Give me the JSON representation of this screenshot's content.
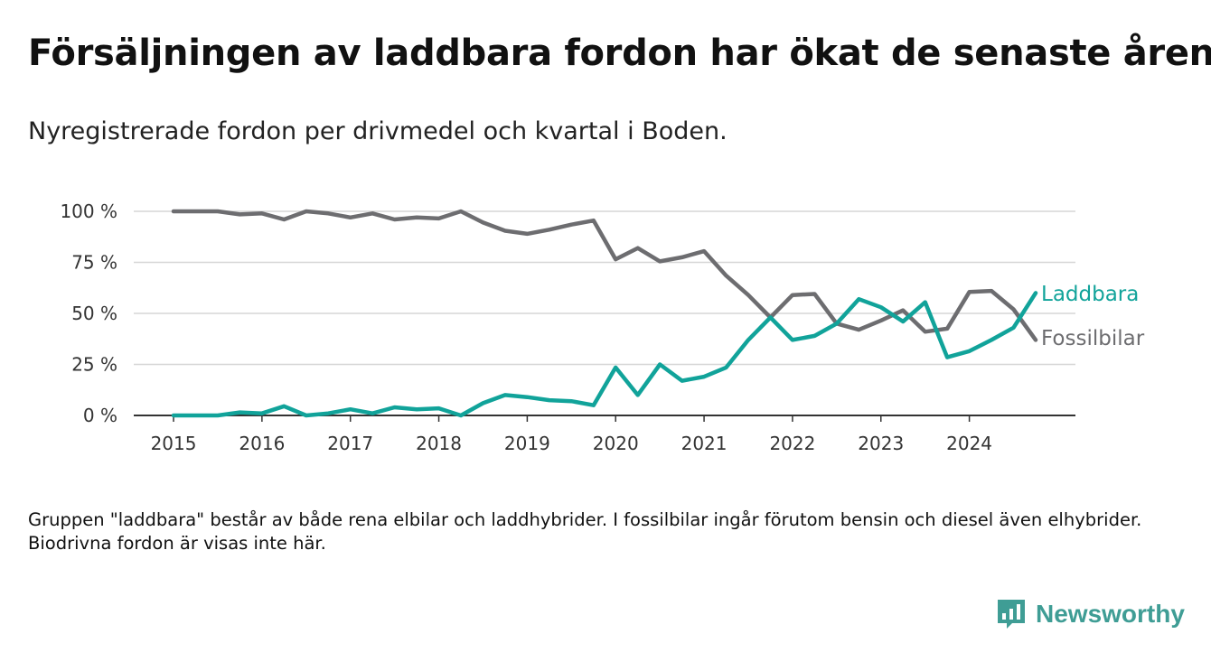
{
  "header": {
    "title": "Försäljningen av laddbara fordon har ökat de senaste åren",
    "subtitle": "Nyregistrerade fordon per drivmedel och kvartal i Boden."
  },
  "footer": {
    "note": "Gruppen \"laddbara\" består av både rena elbilar och laddhybrider. I fossilbilar ingår förutom bensin och diesel även elhybrider. Biodrivna fordon är visas inte här.",
    "logo_text": "Newsworthy"
  },
  "colors": {
    "laddbara": "#11a39a",
    "fossil": "#6d6d70",
    "grid": "#d6d6d6",
    "axis": "#333333",
    "brand": "#3f9d95"
  },
  "chart_data": {
    "type": "line",
    "x": [
      2015.0,
      2015.25,
      2015.5,
      2015.75,
      2016.0,
      2016.25,
      2016.5,
      2016.75,
      2017.0,
      2017.25,
      2017.5,
      2017.75,
      2018.0,
      2018.25,
      2018.5,
      2018.75,
      2019.0,
      2019.25,
      2019.5,
      2019.75,
      2020.0,
      2020.25,
      2020.5,
      2020.75,
      2021.0,
      2021.25,
      2021.5,
      2021.75,
      2022.0,
      2022.25,
      2022.5,
      2022.75,
      2023.0,
      2023.25,
      2023.5,
      2023.75,
      2024.0,
      2024.25,
      2024.5,
      2024.75
    ],
    "xticks": [
      2015,
      2016,
      2017,
      2018,
      2019,
      2020,
      2021,
      2022,
      2023,
      2024
    ],
    "yticks": [
      0,
      25,
      50,
      75,
      100
    ],
    "ytick_labels": [
      "0 %",
      "25 %",
      "50 %",
      "75 %",
      "100 %"
    ],
    "ylim": [
      0,
      100
    ],
    "xlim": [
      2014.55,
      2025.2
    ],
    "grid": true,
    "legend": "inline-right",
    "series": [
      {
        "name": "Laddbara",
        "color_key": "laddbara",
        "values": [
          0,
          0,
          0,
          1.5,
          1,
          4.5,
          0,
          1,
          3,
          1,
          4,
          3,
          3.5,
          0,
          6,
          10,
          9,
          7.5,
          7,
          5,
          23.5,
          10,
          25,
          17,
          19,
          23.5,
          37,
          48,
          37,
          39,
          45,
          57,
          53,
          46,
          55.5,
          28.5,
          31.5,
          37,
          43,
          60
        ]
      },
      {
        "name": "Fossilbilar",
        "color_key": "fossil",
        "values": [
          100,
          100,
          100,
          98.5,
          99,
          96,
          100,
          99,
          97,
          99,
          96,
          97,
          96.5,
          100,
          94.5,
          90.5,
          89,
          91,
          93.5,
          95.5,
          76.5,
          82,
          75.5,
          77.5,
          80.5,
          68.5,
          59,
          48,
          59,
          59.5,
          45,
          42,
          46.5,
          51.5,
          41,
          42.5,
          60.5,
          61,
          52,
          37
        ]
      }
    ]
  }
}
